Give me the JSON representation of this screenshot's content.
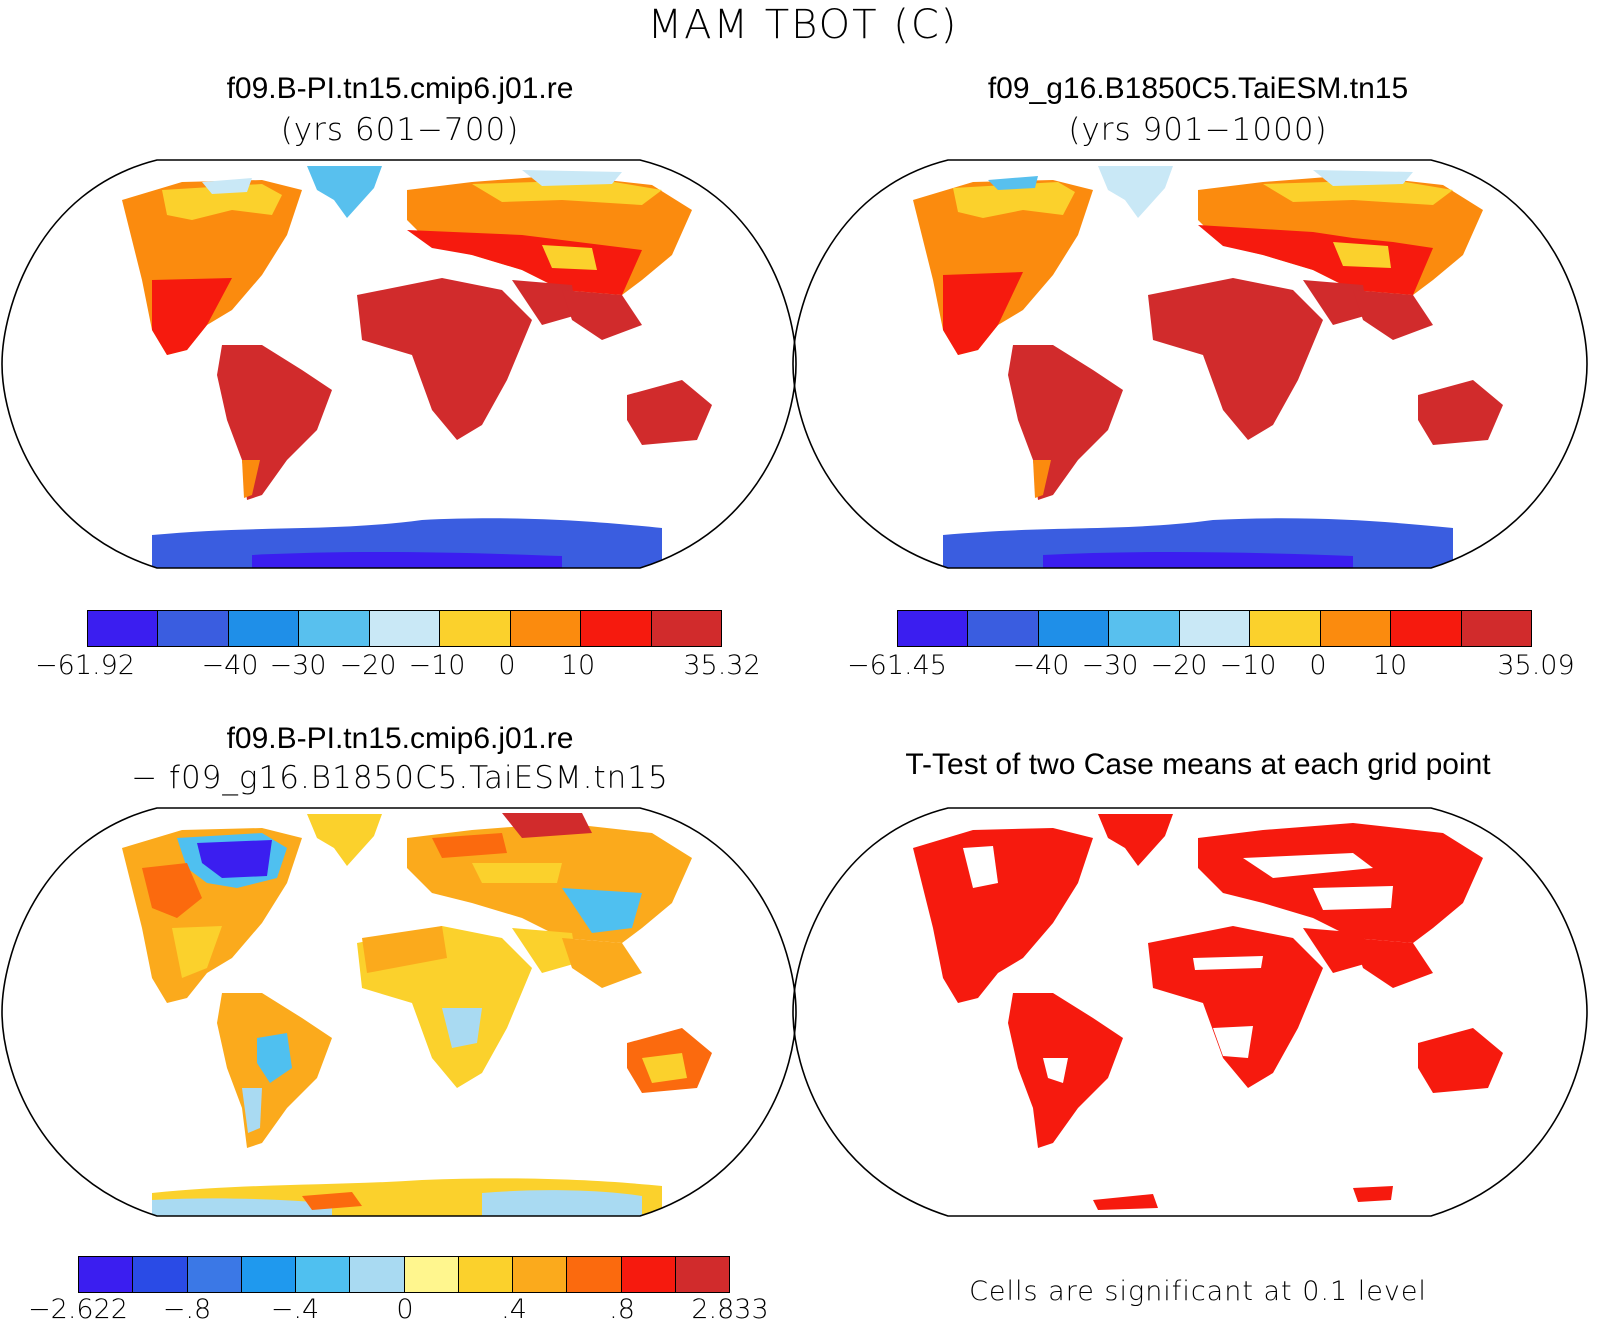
{
  "figure": {
    "title": "MAM TBOT (C)"
  },
  "panels": {
    "case1": {
      "title": "f09.B-PI.tn15.cmip6.j01.re",
      "subtitle": "(yrs 601−700)",
      "colorbar": {
        "colors": [
          "#3b1ef0",
          "#3a5de0",
          "#1f8fe8",
          "#58c0ee",
          "#c9e8f6",
          "#fbd12c",
          "#fb8b0e",
          "#f61a0e",
          "#d12b2c"
        ],
        "ticks": [
          "−61.92",
          "−40",
          "−30",
          "−20",
          "−10",
          "0",
          "10",
          "35.32"
        ]
      }
    },
    "case2": {
      "title": "f09_g16.B1850C5.TaiESM.tn15",
      "subtitle": "(yrs 901−1000)",
      "colorbar": {
        "colors": [
          "#3b1ef0",
          "#3a5de0",
          "#1f8fe8",
          "#58c0ee",
          "#c9e8f6",
          "#fbd12c",
          "#fb8b0e",
          "#f61a0e",
          "#d12b2c"
        ],
        "ticks": [
          "−61.45",
          "−40",
          "−30",
          "−20",
          "−10",
          "0",
          "10",
          "35.09"
        ]
      }
    },
    "diff": {
      "title": "f09.B-PI.tn15.cmip6.j01.re",
      "subtitle": "− f09_g16.B1850C5.TaiESM.tn15",
      "colorbar": {
        "colors": [
          "#3b1ef0",
          "#2a4be6",
          "#3b78e6",
          "#1f99ee",
          "#4fc0f0",
          "#a9daf2",
          "#fff68e",
          "#fbd12c",
          "#fbaa1c",
          "#fb6a0e",
          "#f61a0e",
          "#d12b2c"
        ],
        "ticks": [
          "−2.622",
          "−.8",
          "−.4",
          "0",
          ".4",
          ".8",
          "2.833"
        ]
      }
    },
    "ttest": {
      "title": "T-Test of two Case means at each grid point",
      "note": "Cells are significant at 0.1 level",
      "color": "#f61a0e"
    }
  }
}
